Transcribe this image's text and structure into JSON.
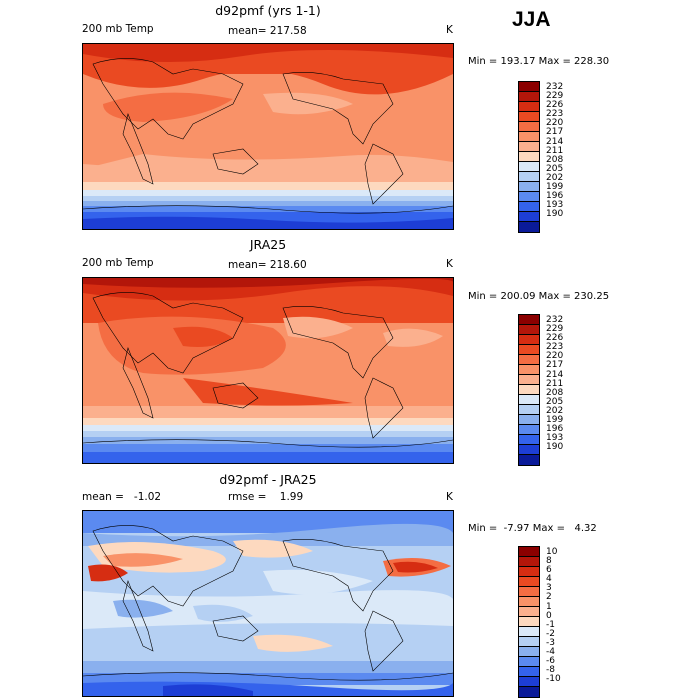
{
  "season": "JJA",
  "panels": [
    {
      "title": "d92pmf (yrs 1-1)",
      "left_label": "200 mb Temp",
      "center_label": "mean= 217.58",
      "units": "K",
      "minmax": "Min = 193.17 Max = 228.30",
      "levels": [
        "232",
        "229",
        "226",
        "223",
        "220",
        "217",
        "214",
        "211",
        "208",
        "205",
        "202",
        "199",
        "196",
        "193",
        "190"
      ],
      "colors": [
        "#8b0000",
        "#b3160a",
        "#d62d12",
        "#ea4a22",
        "#f46d43",
        "#f99268",
        "#fbb08e",
        "#fdd9bf",
        "#dbe9f8",
        "#b5d0f3",
        "#8ab0ee",
        "#5b8af0",
        "#3463ec",
        "#1d3ed5",
        "#0a1a99"
      ]
    },
    {
      "title": "JRA25",
      "left_label": "200 mb Temp",
      "center_label": "mean= 218.60",
      "units": "K",
      "minmax": "Min = 200.09 Max = 230.25",
      "levels": [
        "232",
        "229",
        "226",
        "223",
        "220",
        "217",
        "214",
        "211",
        "208",
        "205",
        "202",
        "199",
        "196",
        "193",
        "190"
      ],
      "colors": [
        "#8b0000",
        "#b3160a",
        "#d62d12",
        "#ea4a22",
        "#f46d43",
        "#f99268",
        "#fbb08e",
        "#fdd9bf",
        "#dbe9f8",
        "#b5d0f3",
        "#8ab0ee",
        "#5b8af0",
        "#3463ec",
        "#1d3ed5",
        "#0a1a99"
      ]
    },
    {
      "title": "d92pmf - JRA25",
      "left_label": "mean =   -1.02",
      "center_label": "rmse =    1.99",
      "units": "K",
      "minmax": "Min =  -7.97 Max =   4.32",
      "levels": [
        "10",
        "8",
        "6",
        "4",
        "3",
        "2",
        "1",
        "0",
        "-1",
        "-2",
        "-3",
        "-4",
        "-6",
        "-8",
        "-10"
      ],
      "colors": [
        "#8b0000",
        "#b3160a",
        "#d62d12",
        "#ea4a22",
        "#f46d43",
        "#f99268",
        "#fbb08e",
        "#fdd9bf",
        "#dbe9f8",
        "#b5d0f3",
        "#8ab0ee",
        "#5b8af0",
        "#3463ec",
        "#1d3ed5",
        "#0a1a99"
      ]
    }
  ],
  "chart_data": [
    {
      "type": "heatmap",
      "title": "d92pmf (yrs 1-1)",
      "variable": "200 mb Temp",
      "units": "K",
      "mean": 217.58,
      "min": 193.17,
      "max": 228.3,
      "contour_levels": [
        190,
        193,
        196,
        199,
        202,
        205,
        208,
        211,
        214,
        217,
        220,
        223,
        226,
        229,
        232
      ]
    },
    {
      "type": "heatmap",
      "title": "JRA25",
      "variable": "200 mb Temp",
      "units": "K",
      "mean": 218.6,
      "min": 200.09,
      "max": 230.25,
      "contour_levels": [
        190,
        193,
        196,
        199,
        202,
        205,
        208,
        211,
        214,
        217,
        220,
        223,
        226,
        229,
        232
      ]
    },
    {
      "type": "heatmap",
      "title": "d92pmf - JRA25",
      "units": "K",
      "mean": -1.02,
      "rmse": 1.99,
      "min": -7.97,
      "max": 4.32,
      "contour_levels": [
        -10,
        -8,
        -6,
        -4,
        -3,
        -2,
        -1,
        0,
        1,
        2,
        3,
        4,
        6,
        8,
        10
      ]
    }
  ]
}
